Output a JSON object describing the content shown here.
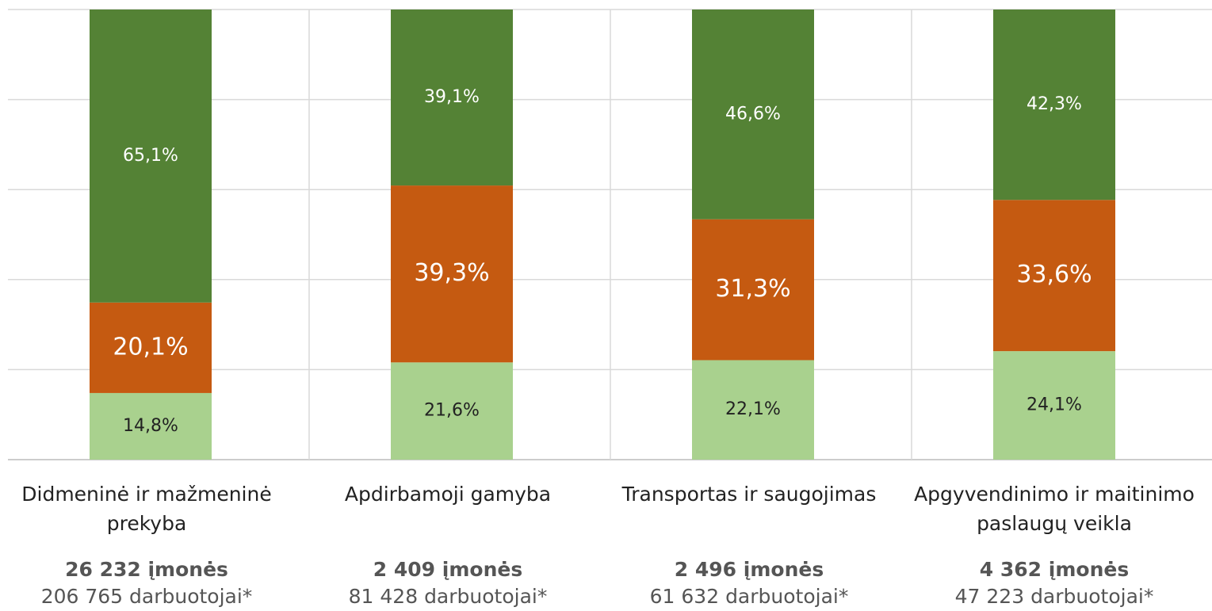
{
  "chart_data": {
    "type": "stacked_bar",
    "categories": [
      "Didmeninė ir mažmeninė prekyba",
      "Apdirbamoji gamyba",
      "Transportas ir saugojimas",
      "Apgyvendinimo ir maitinimo paslaugų veikla"
    ],
    "firms": [
      "26 232 įmonės",
      "2 409 įmonės",
      "2 496 įmonės",
      "4 362 įmonės"
    ],
    "employees": [
      "206 765 darbuotojai*",
      "81 428 darbuotojai*",
      "61 632 darbuotojai*",
      "47 223 darbuotojai*"
    ],
    "series": [
      {
        "color": "#a9d18e",
        "values": [
          14.8,
          21.6,
          22.1,
          24.1
        ],
        "value_labels": [
          "14,8%",
          "21,6%",
          "22,1%",
          "24,1%"
        ]
      },
      {
        "color": "#c55a11",
        "values": [
          20.1,
          39.3,
          31.3,
          33.6
        ],
        "value_labels": [
          "20,1%",
          "39,3%",
          "31,3%",
          "33,6%"
        ]
      },
      {
        "color": "#548235",
        "values": [
          65.1,
          39.1,
          46.6,
          42.3
        ],
        "value_labels": [
          "65,1%",
          "39,1%",
          "46,6%",
          "42,3%"
        ]
      }
    ],
    "ylim": [
      0,
      100
    ],
    "yticks": [
      0,
      20,
      40,
      60,
      80,
      100
    ],
    "grid": true
  }
}
